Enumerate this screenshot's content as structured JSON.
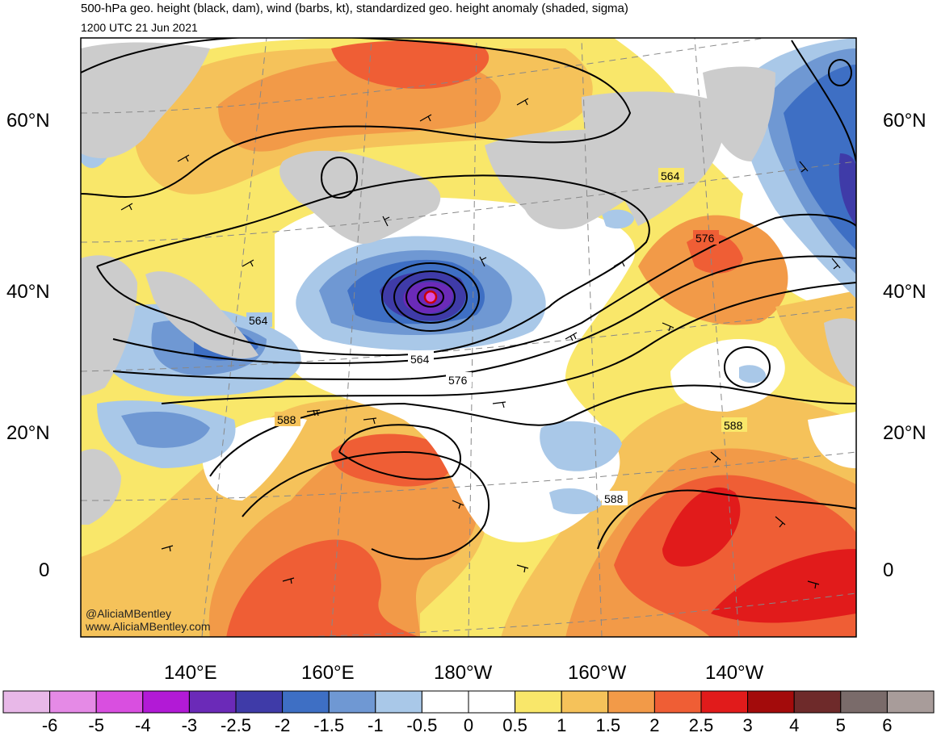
{
  "title": "500-hPa geo. height (black, dam), wind (barbs, kt), standardized geo. height anomaly (shaded, sigma)",
  "subtitle": "1200 UTC 21 Jun 2021",
  "lat_labels_left": [
    "60°N",
    "40°N",
    "20°N",
    "0"
  ],
  "lat_labels_right": [
    "60°N",
    "40°N",
    "20°N",
    "0"
  ],
  "lon_labels": [
    "140°E",
    "160°E",
    "180°W",
    "160°W",
    "140°W"
  ],
  "contour_labels": [
    "564",
    "564",
    "564",
    "576",
    "576",
    "588",
    "588",
    "588"
  ],
  "credit": {
    "handle": "@AliciaMBentley",
    "site": "www.AliciaMBentley.com"
  },
  "colorbar": {
    "labels": [
      "-6",
      "-5",
      "-4",
      "-3",
      "-2.5",
      "-2",
      "-1.5",
      "-1",
      "-0.5",
      "0",
      "0.5",
      "1",
      "1.5",
      "2",
      "2.5",
      "3",
      "4",
      "5",
      "6"
    ],
    "colors": [
      "#e8b8e8",
      "#e58ae6",
      "#d94fe0",
      "#b21ad6",
      "#6b2ab8",
      "#3f3ba8",
      "#3e6fc4",
      "#6f98d3",
      "#a9c8e8",
      "#ffffff",
      "#ffffff",
      "#f9e76a",
      "#f5c25a",
      "#f29a48",
      "#ef5e35",
      "#e11b1b",
      "#a30b0b",
      "#6e2a2a",
      "#7a6b6a",
      "#a89c9a"
    ]
  }
}
